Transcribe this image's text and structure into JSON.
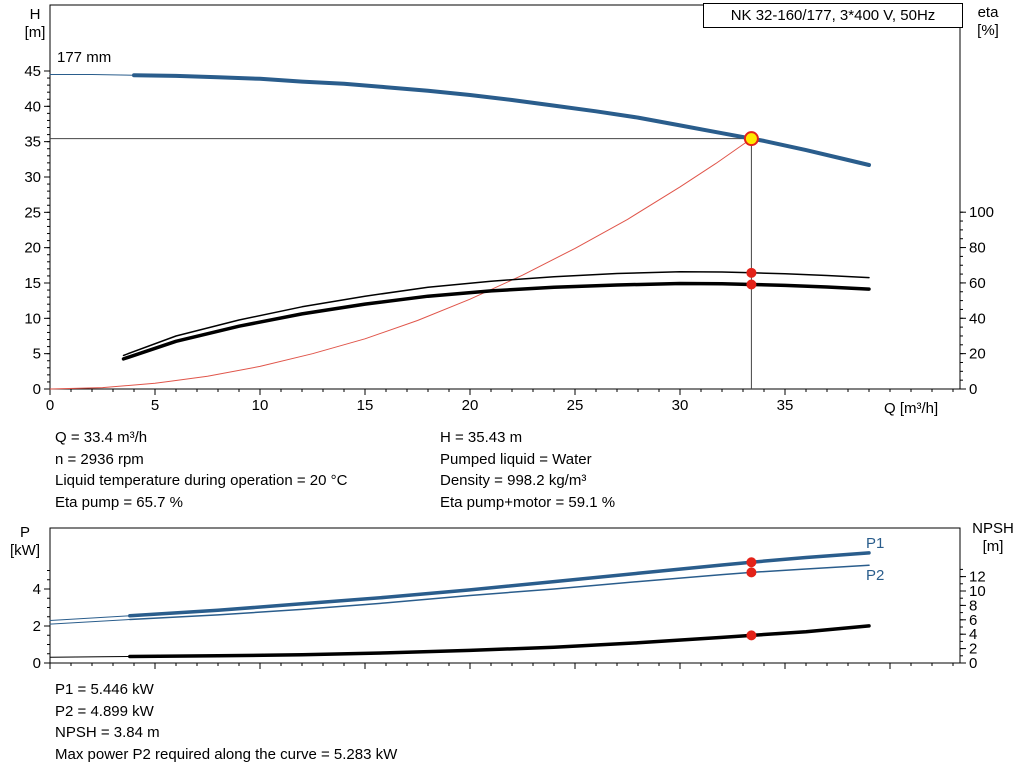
{
  "title_box": "NK 32-160/177, 3*400 V, 50Hz",
  "colors": {
    "curve_blue": "#2a5d8c",
    "curve_black": "#000000",
    "system_red": "#e0554a",
    "marker_red": "#e32219",
    "duty_fill": "#ffe800",
    "duty_ring": "#e32219",
    "guide_gray": "#444444"
  },
  "top_chart": {
    "left_axis_title": "H",
    "left_axis_unit": "[m]",
    "right_axis_title": "eta",
    "right_axis_unit": "[%]",
    "x_axis_label": "Q [m³/h]",
    "impeller_label": "177 mm"
  },
  "bottom_chart": {
    "left_axis_title": "P",
    "left_axis_unit": "[kW]",
    "right_axis_title": "NPSH",
    "right_axis_unit": "[m]",
    "p1_label": "P1",
    "p2_label": "P2"
  },
  "info_top": {
    "left": [
      "Q = 33.4 m³/h",
      "n = 2936 rpm",
      "Liquid temperature during operation = 20 °C",
      "Eta pump = 65.7 %"
    ],
    "right": [
      "H = 35.43 m",
      "Pumped liquid = Water",
      "Density = 998.2 kg/m³",
      "Eta pump+motor = 59.1 %"
    ]
  },
  "info_bottom": [
    "P1 = 5.446 kW",
    "P2 = 4.899 kW",
    "NPSH = 3.84 m",
    "Max power P2 required along the curve = 5.283 kW"
  ],
  "chart_data": [
    {
      "type": "line",
      "title": "NK 32-160/177, 3*400 V, 50Hz",
      "xlabel": "Q [m³/h]",
      "ylabel_left": "H [m]",
      "ylabel_right": "eta [%]",
      "xlim": [
        0,
        43
      ],
      "ylim_left": [
        0,
        54
      ],
      "ylim_right_labeled": [
        0,
        100
      ],
      "x_axis": {
        "major_ticks": [
          0,
          5,
          10,
          15,
          20,
          25,
          30,
          35
        ],
        "minor_step": 1,
        "minor_max": 43,
        "show_labels": true
      },
      "y_left": {
        "major_ticks": [
          0,
          5,
          10,
          15,
          20,
          25,
          30,
          35,
          40,
          45
        ],
        "minor_step": 1,
        "minor_max": 45,
        "show_labels": true
      },
      "y_right": {
        "major_ticks": [
          0,
          20,
          40,
          60,
          80,
          100
        ],
        "minor_step": 5,
        "minor_max": 100,
        "show_labels": true
      },
      "series": [
        {
          "name": "system-curve",
          "axis": "left",
          "color": "#e0554a",
          "width": 1,
          "q": [
            0,
            2.5,
            5,
            7.5,
            10,
            12.5,
            15,
            17.5,
            20,
            22.5,
            25,
            27.5,
            30,
            31.7,
            33.4
          ],
          "v": [
            0,
            0.2,
            0.8,
            1.8,
            3.2,
            5.0,
            7.1,
            9.7,
            12.7,
            16.1,
            19.9,
            24.0,
            28.6,
            31.9,
            35.43
          ]
        },
        {
          "name": "eta-pump",
          "axis": "right",
          "color": "#000000",
          "width": 1.5,
          "q": [
            3.5,
            6,
            9,
            12,
            15,
            18,
            21,
            24,
            27,
            30,
            32,
            33.4,
            35,
            37,
            39
          ],
          "v": [
            19,
            30,
            39,
            46.5,
            52.5,
            57.5,
            61,
            63.5,
            65.3,
            66.3,
            66.2,
            65.7,
            65.2,
            64.2,
            63
          ]
        },
        {
          "name": "eta-pump-motor",
          "axis": "right",
          "color": "#000000",
          "width": 3.5,
          "q": [
            3.5,
            6,
            9,
            12,
            15,
            18,
            21,
            24,
            27,
            30,
            32,
            33.4,
            35,
            37,
            39
          ],
          "v": [
            17,
            27,
            35.5,
            42.5,
            48,
            52.5,
            55.5,
            57.5,
            58.8,
            59.7,
            59.5,
            59.1,
            58.6,
            57.7,
            56.5
          ]
        },
        {
          "name": "head-177mm",
          "axis": "left",
          "color": "#2a5d8c",
          "width": 4,
          "lead_until": 4,
          "q": [
            0,
            2,
            4,
            6,
            8,
            10,
            12,
            14,
            16,
            18,
            20,
            22,
            24,
            26,
            28,
            30,
            32,
            33.4,
            34,
            36,
            38,
            39
          ],
          "v": [
            44.5,
            44.5,
            44.4,
            44.3,
            44.1,
            43.9,
            43.5,
            43.2,
            42.7,
            42.2,
            41.6,
            40.9,
            40.1,
            39.3,
            38.4,
            37.3,
            36.2,
            35.43,
            35.1,
            33.8,
            32.4,
            31.7
          ]
        }
      ],
      "guides": [
        {
          "type": "h",
          "y": 35.43,
          "x": 33.4
        },
        {
          "type": "v",
          "x": 33.4,
          "v": 35.43
        }
      ],
      "markers": [
        {
          "x": 33.4,
          "y": 65.7,
          "axis": "right",
          "style": "dot"
        },
        {
          "x": 33.4,
          "y": 59.1,
          "axis": "right",
          "style": "dot"
        },
        {
          "x": 33.4,
          "y": 35.43,
          "axis": "left",
          "style": "duty"
        }
      ],
      "duty_point": {
        "Q_m3h": 33.4,
        "H_m": 35.43,
        "eta_pump_pct": 65.7,
        "eta_pump_motor_pct": 59.1
      }
    },
    {
      "type": "line",
      "ylabel_left": "P [kW]",
      "ylabel_right": "NPSH [m]",
      "xlim": [
        0,
        43
      ],
      "ylim_left": [
        0,
        7.3
      ],
      "ylim_right": [
        0,
        18.7
      ],
      "x_axis": {
        "major_ticks": [
          0,
          5,
          10,
          15,
          20,
          25,
          30,
          35,
          40
        ],
        "minor_step": 1,
        "minor_max": 43,
        "show_labels": false
      },
      "y_left": {
        "major_ticks": [
          0,
          2,
          4
        ],
        "minor_step": 0.5,
        "minor_max": 5,
        "show_labels": true
      },
      "y_right": {
        "major_ticks": [
          0,
          2,
          4,
          6,
          8,
          10,
          12
        ],
        "minor_step": 1,
        "minor_max": 13,
        "show_labels": true
      },
      "series": [
        {
          "name": "P1",
          "axis": "left",
          "color": "#2a5d8c",
          "width": 3.5,
          "lead_until": 3.8,
          "q": [
            0,
            3.8,
            8,
            12,
            16,
            20,
            24,
            28,
            32,
            33.4,
            36,
            39
          ],
          "v": [
            2.3,
            2.55,
            2.85,
            3.2,
            3.55,
            3.95,
            4.4,
            4.85,
            5.3,
            5.446,
            5.7,
            5.95
          ]
        },
        {
          "name": "P2",
          "axis": "left",
          "color": "#2a5d8c",
          "width": 1.5,
          "lead_until": 3.8,
          "q": [
            0,
            3.8,
            8,
            12,
            16,
            20,
            24,
            28,
            32,
            33.4,
            36,
            39
          ],
          "v": [
            2.1,
            2.35,
            2.6,
            2.9,
            3.25,
            3.65,
            4.0,
            4.4,
            4.78,
            4.899,
            5.08,
            5.28
          ]
        },
        {
          "name": "NPSH",
          "axis": "right",
          "color": "#000000",
          "width": 3.5,
          "lead_until": 3.8,
          "q": [
            0,
            3.8,
            8,
            12,
            16,
            20,
            24,
            28,
            32,
            33.4,
            36,
            39
          ],
          "v": [
            0.8,
            0.9,
            1.0,
            1.15,
            1.4,
            1.75,
            2.2,
            2.8,
            3.55,
            3.84,
            4.35,
            5.15
          ]
        }
      ],
      "guides": [],
      "markers": [
        {
          "x": 33.4,
          "y": 5.446,
          "axis": "left",
          "style": "dot"
        },
        {
          "x": 33.4,
          "y": 4.899,
          "axis": "left",
          "style": "dot"
        },
        {
          "x": 33.4,
          "y": 3.84,
          "axis": "right",
          "style": "dot"
        }
      ],
      "duty_point": {
        "Q_m3h": 33.4,
        "P1_kW": 5.446,
        "P2_kW": 4.899,
        "NPSH_m": 3.84
      }
    }
  ]
}
